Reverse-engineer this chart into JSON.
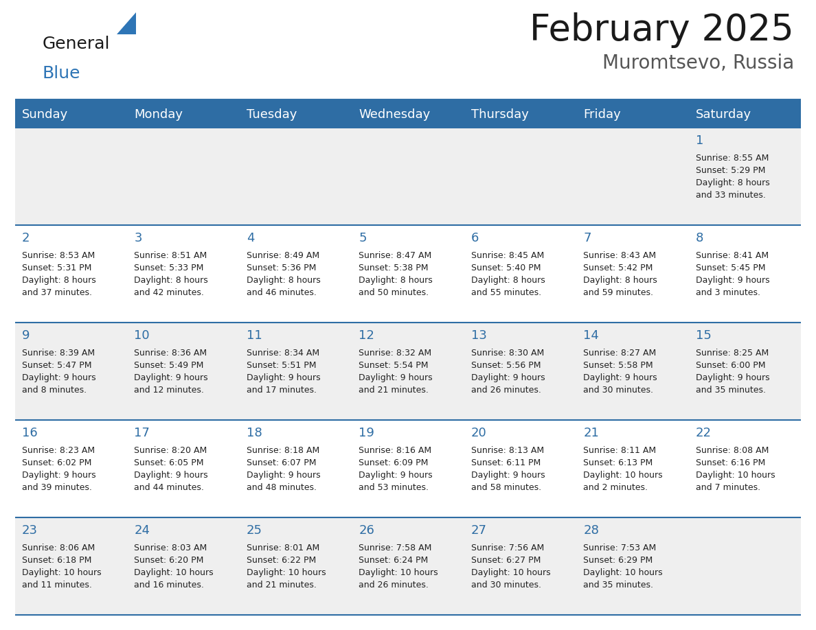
{
  "title": "February 2025",
  "subtitle": "Muromtsevo, Russia",
  "days_of_week": [
    "Sunday",
    "Monday",
    "Tuesday",
    "Wednesday",
    "Thursday",
    "Friday",
    "Saturday"
  ],
  "header_bg": "#2E6DA4",
  "header_text": "#FFFFFF",
  "row_bg_odd": "#EFEFEF",
  "row_bg_even": "#FFFFFF",
  "border_color": "#2E6DA4",
  "day_number_color": "#2E6DA4",
  "info_color": "#222222",
  "title_color": "#1a1a1a",
  "subtitle_color": "#555555",
  "logo_general_color": "#1a1a1a",
  "logo_blue_color": "#2E75B6",
  "calendar_data": [
    [
      null,
      null,
      null,
      null,
      null,
      null,
      {
        "day": 1,
        "sunrise": "8:55 AM",
        "sunset": "5:29 PM",
        "daylight": "8 hours\nand 33 minutes."
      }
    ],
    [
      {
        "day": 2,
        "sunrise": "8:53 AM",
        "sunset": "5:31 PM",
        "daylight": "8 hours\nand 37 minutes."
      },
      {
        "day": 3,
        "sunrise": "8:51 AM",
        "sunset": "5:33 PM",
        "daylight": "8 hours\nand 42 minutes."
      },
      {
        "day": 4,
        "sunrise": "8:49 AM",
        "sunset": "5:36 PM",
        "daylight": "8 hours\nand 46 minutes."
      },
      {
        "day": 5,
        "sunrise": "8:47 AM",
        "sunset": "5:38 PM",
        "daylight": "8 hours\nand 50 minutes."
      },
      {
        "day": 6,
        "sunrise": "8:45 AM",
        "sunset": "5:40 PM",
        "daylight": "8 hours\nand 55 minutes."
      },
      {
        "day": 7,
        "sunrise": "8:43 AM",
        "sunset": "5:42 PM",
        "daylight": "8 hours\nand 59 minutes."
      },
      {
        "day": 8,
        "sunrise": "8:41 AM",
        "sunset": "5:45 PM",
        "daylight": "9 hours\nand 3 minutes."
      }
    ],
    [
      {
        "day": 9,
        "sunrise": "8:39 AM",
        "sunset": "5:47 PM",
        "daylight": "9 hours\nand 8 minutes."
      },
      {
        "day": 10,
        "sunrise": "8:36 AM",
        "sunset": "5:49 PM",
        "daylight": "9 hours\nand 12 minutes."
      },
      {
        "day": 11,
        "sunrise": "8:34 AM",
        "sunset": "5:51 PM",
        "daylight": "9 hours\nand 17 minutes."
      },
      {
        "day": 12,
        "sunrise": "8:32 AM",
        "sunset": "5:54 PM",
        "daylight": "9 hours\nand 21 minutes."
      },
      {
        "day": 13,
        "sunrise": "8:30 AM",
        "sunset": "5:56 PM",
        "daylight": "9 hours\nand 26 minutes."
      },
      {
        "day": 14,
        "sunrise": "8:27 AM",
        "sunset": "5:58 PM",
        "daylight": "9 hours\nand 30 minutes."
      },
      {
        "day": 15,
        "sunrise": "8:25 AM",
        "sunset": "6:00 PM",
        "daylight": "9 hours\nand 35 minutes."
      }
    ],
    [
      {
        "day": 16,
        "sunrise": "8:23 AM",
        "sunset": "6:02 PM",
        "daylight": "9 hours\nand 39 minutes."
      },
      {
        "day": 17,
        "sunrise": "8:20 AM",
        "sunset": "6:05 PM",
        "daylight": "9 hours\nand 44 minutes."
      },
      {
        "day": 18,
        "sunrise": "8:18 AM",
        "sunset": "6:07 PM",
        "daylight": "9 hours\nand 48 minutes."
      },
      {
        "day": 19,
        "sunrise": "8:16 AM",
        "sunset": "6:09 PM",
        "daylight": "9 hours\nand 53 minutes."
      },
      {
        "day": 20,
        "sunrise": "8:13 AM",
        "sunset": "6:11 PM",
        "daylight": "9 hours\nand 58 minutes."
      },
      {
        "day": 21,
        "sunrise": "8:11 AM",
        "sunset": "6:13 PM",
        "daylight": "10 hours\nand 2 minutes."
      },
      {
        "day": 22,
        "sunrise": "8:08 AM",
        "sunset": "6:16 PM",
        "daylight": "10 hours\nand 7 minutes."
      }
    ],
    [
      {
        "day": 23,
        "sunrise": "8:06 AM",
        "sunset": "6:18 PM",
        "daylight": "10 hours\nand 11 minutes."
      },
      {
        "day": 24,
        "sunrise": "8:03 AM",
        "sunset": "6:20 PM",
        "daylight": "10 hours\nand 16 minutes."
      },
      {
        "day": 25,
        "sunrise": "8:01 AM",
        "sunset": "6:22 PM",
        "daylight": "10 hours\nand 21 minutes."
      },
      {
        "day": 26,
        "sunrise": "7:58 AM",
        "sunset": "6:24 PM",
        "daylight": "10 hours\nand 26 minutes."
      },
      {
        "day": 27,
        "sunrise": "7:56 AM",
        "sunset": "6:27 PM",
        "daylight": "10 hours\nand 30 minutes."
      },
      {
        "day": 28,
        "sunrise": "7:53 AM",
        "sunset": "6:29 PM",
        "daylight": "10 hours\nand 35 minutes."
      },
      null
    ]
  ]
}
